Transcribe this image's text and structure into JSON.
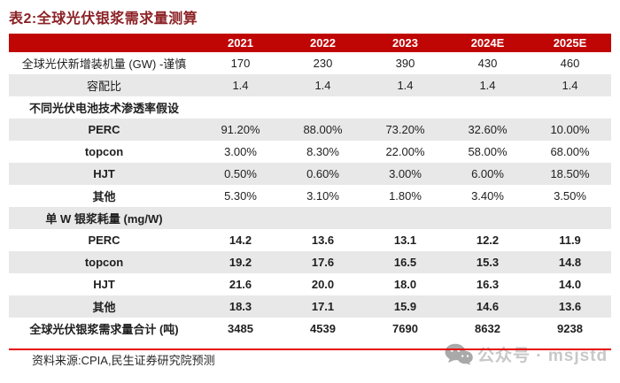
{
  "page": {
    "title": "表2:全球光伏银浆需求量测算",
    "source_note": "资料来源:CPIA,民生证券研究院预测"
  },
  "colors": {
    "title_red": "#8B2125",
    "header_red": "#C00505",
    "stripe_gray": "#E8E8E8",
    "divider_red": "#E60505",
    "watermark_gray": "#C8C8C8"
  },
  "table": {
    "corner_label": "",
    "columns": [
      "2021",
      "2022",
      "2023",
      "2024E",
      "2025E"
    ],
    "rows": [
      {
        "label": "全球光伏新增装机量 (GW) -谨慎",
        "values": [
          "170",
          "230",
          "390",
          "430",
          "460"
        ],
        "shaded": false,
        "section": false,
        "label_bold": false,
        "values_bold": false,
        "total": false
      },
      {
        "label": "容配比",
        "values": [
          "1.4",
          "1.4",
          "1.4",
          "1.4",
          "1.4"
        ],
        "shaded": true,
        "section": false,
        "label_bold": false,
        "values_bold": false,
        "total": false
      },
      {
        "label": "不同光伏电池技术渗透率假设",
        "values": [
          "",
          "",
          "",
          "",
          ""
        ],
        "shaded": false,
        "section": true,
        "label_bold": true,
        "values_bold": false,
        "total": false
      },
      {
        "label": "PERC",
        "values": [
          "91.20%",
          "88.00%",
          "73.20%",
          "32.60%",
          "10.00%"
        ],
        "shaded": true,
        "section": false,
        "label_bold": true,
        "values_bold": false,
        "total": false
      },
      {
        "label": "topcon",
        "values": [
          "3.00%",
          "8.30%",
          "22.00%",
          "58.00%",
          "68.00%"
        ],
        "shaded": false,
        "section": false,
        "label_bold": true,
        "values_bold": false,
        "total": false
      },
      {
        "label": "HJT",
        "values": [
          "0.50%",
          "0.60%",
          "3.00%",
          "6.00%",
          "18.50%"
        ],
        "shaded": true,
        "section": false,
        "label_bold": true,
        "values_bold": false,
        "total": false
      },
      {
        "label": "其他",
        "values": [
          "5.30%",
          "3.10%",
          "1.80%",
          "3.40%",
          "3.50%"
        ],
        "shaded": false,
        "section": false,
        "label_bold": true,
        "values_bold": false,
        "total": false
      },
      {
        "label": "单 W 银浆耗量 (mg/W)",
        "values": [
          "",
          "",
          "",
          "",
          ""
        ],
        "shaded": true,
        "section": true,
        "label_bold": true,
        "values_bold": false,
        "total": false
      },
      {
        "label": "PERC",
        "values": [
          "14.2",
          "13.6",
          "13.1",
          "12.2",
          "11.9"
        ],
        "shaded": false,
        "section": false,
        "label_bold": true,
        "values_bold": true,
        "total": false
      },
      {
        "label": "topcon",
        "values": [
          "19.2",
          "17.6",
          "16.5",
          "15.3",
          "14.8"
        ],
        "shaded": true,
        "section": false,
        "label_bold": true,
        "values_bold": true,
        "total": false
      },
      {
        "label": "HJT",
        "values": [
          "21.6",
          "20.0",
          "18.0",
          "16.3",
          "14.0"
        ],
        "shaded": false,
        "section": false,
        "label_bold": true,
        "values_bold": true,
        "total": false
      },
      {
        "label": "其他",
        "values": [
          "18.3",
          "17.1",
          "15.9",
          "14.6",
          "13.6"
        ],
        "shaded": true,
        "section": false,
        "label_bold": true,
        "values_bold": true,
        "total": false
      },
      {
        "label": "全球光伏银浆需求量合计 (吨)",
        "values": [
          "3485",
          "4539",
          "7690",
          "8632",
          "9238"
        ],
        "shaded": false,
        "section": false,
        "label_bold": true,
        "values_bold": true,
        "total": true
      }
    ]
  },
  "watermark": {
    "icon": "wechat-icon",
    "text": "公众号 · msjstd"
  }
}
